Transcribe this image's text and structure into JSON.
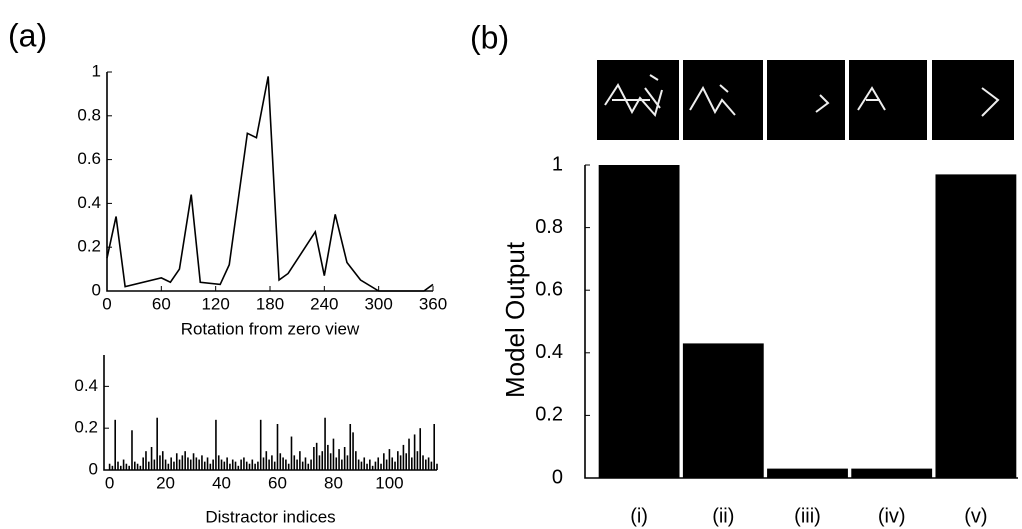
{
  "chart_data": [
    {
      "type": "line",
      "label": "(a)",
      "xlabel": "Rotation from zero view",
      "color": "#000000",
      "x": [
        0,
        10,
        20,
        60,
        70,
        80,
        93,
        103,
        125,
        135,
        155,
        165,
        178,
        190,
        200,
        230,
        240,
        252,
        265,
        280,
        300,
        350,
        360
      ],
      "values": [
        0.15,
        0.34,
        0.02,
        0.06,
        0.04,
        0.1,
        0.44,
        0.04,
        0.03,
        0.12,
        0.72,
        0.7,
        0.98,
        0.05,
        0.08,
        0.27,
        0.07,
        0.35,
        0.13,
        0.05,
        0,
        0,
        0.03
      ],
      "xlim": [
        0,
        360
      ],
      "xticks": [
        0,
        60,
        120,
        180,
        240,
        300,
        360
      ],
      "ylim": [
        0,
        1
      ],
      "yticks": [
        0,
        0.2,
        0.4,
        0.6,
        0.8,
        1
      ]
    },
    {
      "type": "bar",
      "xlabel": "Distractor indices",
      "color": "#000000",
      "x": [
        0,
        1,
        2,
        3,
        4,
        5,
        6,
        7,
        8,
        9,
        10,
        11,
        12,
        13,
        14,
        15,
        16,
        17,
        18,
        19,
        20,
        21,
        22,
        23,
        24,
        25,
        26,
        27,
        28,
        29,
        30,
        31,
        32,
        33,
        34,
        35,
        36,
        37,
        38,
        39,
        40,
        41,
        42,
        43,
        44,
        45,
        46,
        47,
        48,
        49,
        50,
        51,
        52,
        53,
        54,
        55,
        56,
        57,
        58,
        59,
        60,
        61,
        62,
        63,
        64,
        65,
        66,
        67,
        68,
        69,
        70,
        71,
        72,
        73,
        74,
        75,
        76,
        77,
        78,
        79,
        80,
        81,
        82,
        83,
        84,
        85,
        86,
        87,
        88,
        89,
        90,
        91,
        92,
        93,
        94,
        95,
        96,
        97,
        98,
        99,
        100,
        101,
        102,
        103,
        104,
        105,
        106,
        107,
        108,
        109,
        110,
        111,
        112,
        113,
        114,
        115,
        116,
        117
      ],
      "values": [
        0.03,
        0.02,
        0.24,
        0.04,
        0.02,
        0.05,
        0.03,
        0.02,
        0.19,
        0.04,
        0.03,
        0.02,
        0.06,
        0.09,
        0.04,
        0.11,
        0.05,
        0.25,
        0.07,
        0.09,
        0.05,
        0.03,
        0.06,
        0.04,
        0.08,
        0.05,
        0.07,
        0.09,
        0.06,
        0.05,
        0.08,
        0.06,
        0.05,
        0.07,
        0.04,
        0.06,
        0.03,
        0.05,
        0.24,
        0.07,
        0.05,
        0.04,
        0.06,
        0.03,
        0.05,
        0.04,
        0.02,
        0.05,
        0.06,
        0.04,
        0.03,
        0.05,
        0.03,
        0.04,
        0.24,
        0.06,
        0.09,
        0.05,
        0.07,
        0.04,
        0.22,
        0.08,
        0.06,
        0.05,
        0.03,
        0.16,
        0.07,
        0.05,
        0.09,
        0.04,
        0.06,
        0.03,
        0.05,
        0.11,
        0.13,
        0.07,
        0.09,
        0.25,
        0.12,
        0.08,
        0.15,
        0.06,
        0.1,
        0.05,
        0.11,
        0.07,
        0.22,
        0.18,
        0.09,
        0.05,
        0.04,
        0.06,
        0.03,
        0.05,
        0.02,
        0.04,
        0.06,
        0.03,
        0.08,
        0.05,
        0.1,
        0.06,
        0.04,
        0.09,
        0.07,
        0.12,
        0.08,
        0.15,
        0.06,
        0.17,
        0.09,
        0.2,
        0.07,
        0.05,
        0.06,
        0.04,
        0.22,
        0.03
      ],
      "xlim": [
        -2,
        117
      ],
      "xticks": [
        0,
        20,
        40,
        60,
        80,
        100
      ],
      "ylim": [
        0,
        0.55
      ],
      "yticks": [
        0,
        0.2,
        0.4
      ]
    },
    {
      "type": "bar",
      "label": "(b)",
      "ylabel": "Model Output",
      "color": "#000000",
      "categories": [
        "(i)",
        "(ii)",
        "(iii)",
        "(iv)",
        "(v)"
      ],
      "values": [
        1,
        0.43,
        0.03,
        0.03,
        0.97
      ],
      "ylim": [
        0,
        1
      ],
      "yticks": [
        0,
        0.2,
        0.4,
        0.6,
        0.8,
        1
      ]
    }
  ]
}
